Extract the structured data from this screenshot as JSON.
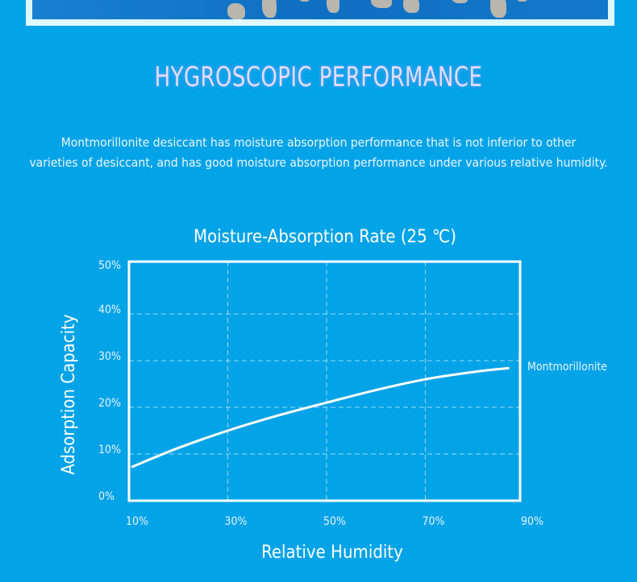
{
  "header": {
    "title": "HYGROSCOPIC PERFORMANCE",
    "description_lines": [
      "Montmorillonite desiccant has moisture absorption performance that is not inferior to other",
      "varieties of desiccant, and has good moisture absorption performance under various relative humidity."
    ]
  },
  "colors": {
    "background": "#03a3e8",
    "line": "#ffffff",
    "grid": "#9fd8f5"
  },
  "chart_data": {
    "type": "line",
    "title": "Moisture-Absorption Rate (25 ℃)",
    "xlabel": "Relative Humidity",
    "ylabel": "Adsorption Capacity",
    "xlim": [
      10,
      90
    ],
    "ylim": [
      0,
      50
    ],
    "x_ticks": [
      "10%",
      "30%",
      "50%",
      "70%",
      "90%"
    ],
    "y_ticks": [
      "0%",
      "10%",
      "20%",
      "30%",
      "40%",
      "50%"
    ],
    "grid": true,
    "legend": "right",
    "series": [
      {
        "name": "Montmorillonite",
        "x": [
          10.5,
          20,
          30,
          40,
          50,
          60,
          70,
          80,
          87
        ],
        "y": [
          7.2,
          11.3,
          15,
          18.2,
          21,
          23.7,
          26,
          27.6,
          28.4
        ]
      }
    ]
  }
}
